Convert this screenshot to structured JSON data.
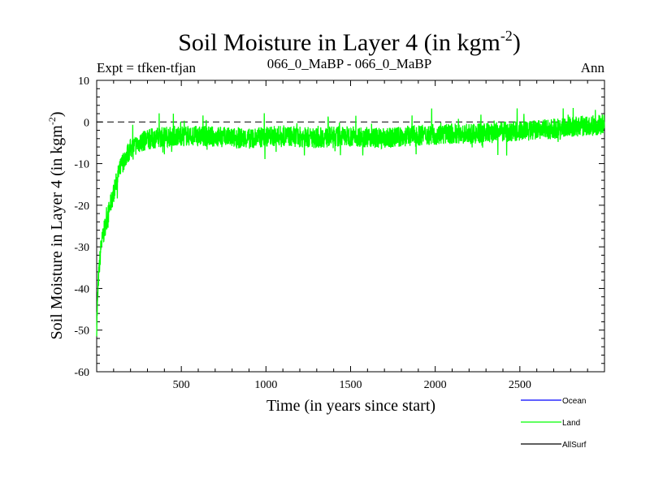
{
  "header": {
    "title": "Soil Moisture in Layer 4 (in kgm",
    "title_sup": "-2",
    "title_close": ")",
    "expt": "Expt = tfken-tfjan",
    "subtitle": "066_0_MaBP - 066_0_MaBP",
    "season": "Ann"
  },
  "chart_data": {
    "type": "line",
    "xlabel": "Time (in years since start)",
    "ylabel": "Soil Moisture in Layer 4 (in kgm",
    "ylabel_sup": "-2",
    "ylabel_close": ")",
    "xlim": [
      0,
      3000
    ],
    "ylim": [
      -60,
      10
    ],
    "x_ticks": [
      500,
      1000,
      1500,
      2000,
      2500
    ],
    "y_ticks": [
      10,
      0,
      -10,
      -20,
      -30,
      -40,
      -50,
      -60
    ],
    "reference_line": 0,
    "legend_position": "bottom-right",
    "series": [
      {
        "name": "Ocean",
        "color": "#0000ff",
        "x": [],
        "values": []
      },
      {
        "name": "Land",
        "color": "#00ff00",
        "x": [
          0,
          10,
          25,
          50,
          75,
          100,
          125,
          150,
          175,
          200,
          250,
          300,
          350,
          400,
          500,
          600,
          700,
          800,
          900,
          1000,
          1100,
          1200,
          1300,
          1400,
          1500,
          1600,
          1700,
          1800,
          1900,
          2000,
          2100,
          2200,
          2300,
          2400,
          2500,
          2600,
          2700,
          2800,
          2900,
          3000
        ],
        "values": [
          -49,
          -38,
          -30,
          -25,
          -21,
          -17,
          -13,
          -10,
          -8,
          -6.5,
          -5,
          -4.2,
          -3.8,
          -3.5,
          -3.3,
          -3.4,
          -3.5,
          -3.8,
          -4,
          -3.5,
          -3.3,
          -3.6,
          -3.8,
          -3.5,
          -3.4,
          -3.6,
          -4,
          -3.5,
          -3.2,
          -3,
          -2.8,
          -3,
          -2.6,
          -2.4,
          -2.2,
          -2,
          -1.6,
          -1.2,
          -1,
          -0.5
        ],
        "noise_amplitude": 2.5
      },
      {
        "name": "AllSurf",
        "color": "#000000",
        "x": [],
        "values": []
      }
    ]
  }
}
